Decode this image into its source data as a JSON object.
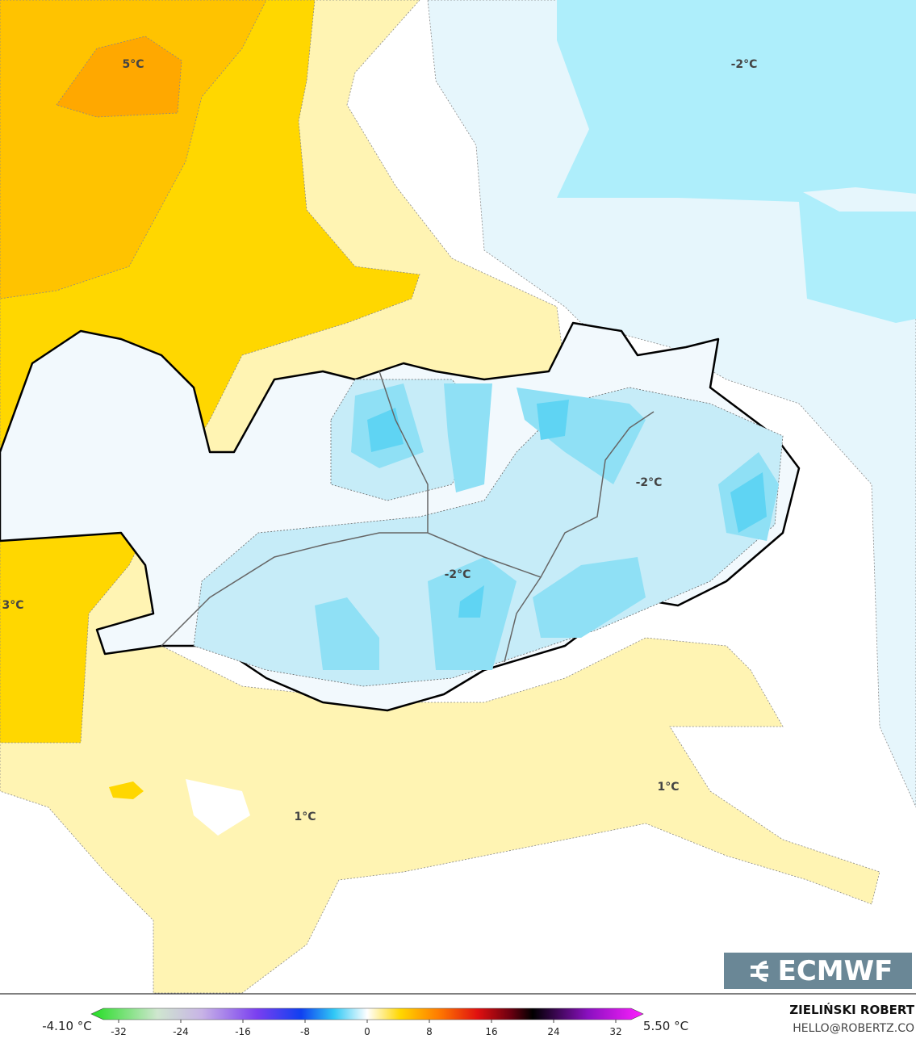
{
  "map": {
    "labels": [
      "5°C",
      "-2°C",
      "3°C",
      "-2°C",
      "-2°C",
      "1°C",
      "1°C"
    ]
  },
  "legend": {
    "min_label": "-4.10 °C",
    "max_label": "5.50 °C",
    "ticks": [
      -32,
      -24,
      -16,
      -8,
      0,
      8,
      16,
      24,
      32
    ]
  },
  "logo": "ECMWF",
  "credit": {
    "author": "ZIELIŃSKI ROBERT",
    "contact": "HELLO@ROBERTZ.CO"
  }
}
